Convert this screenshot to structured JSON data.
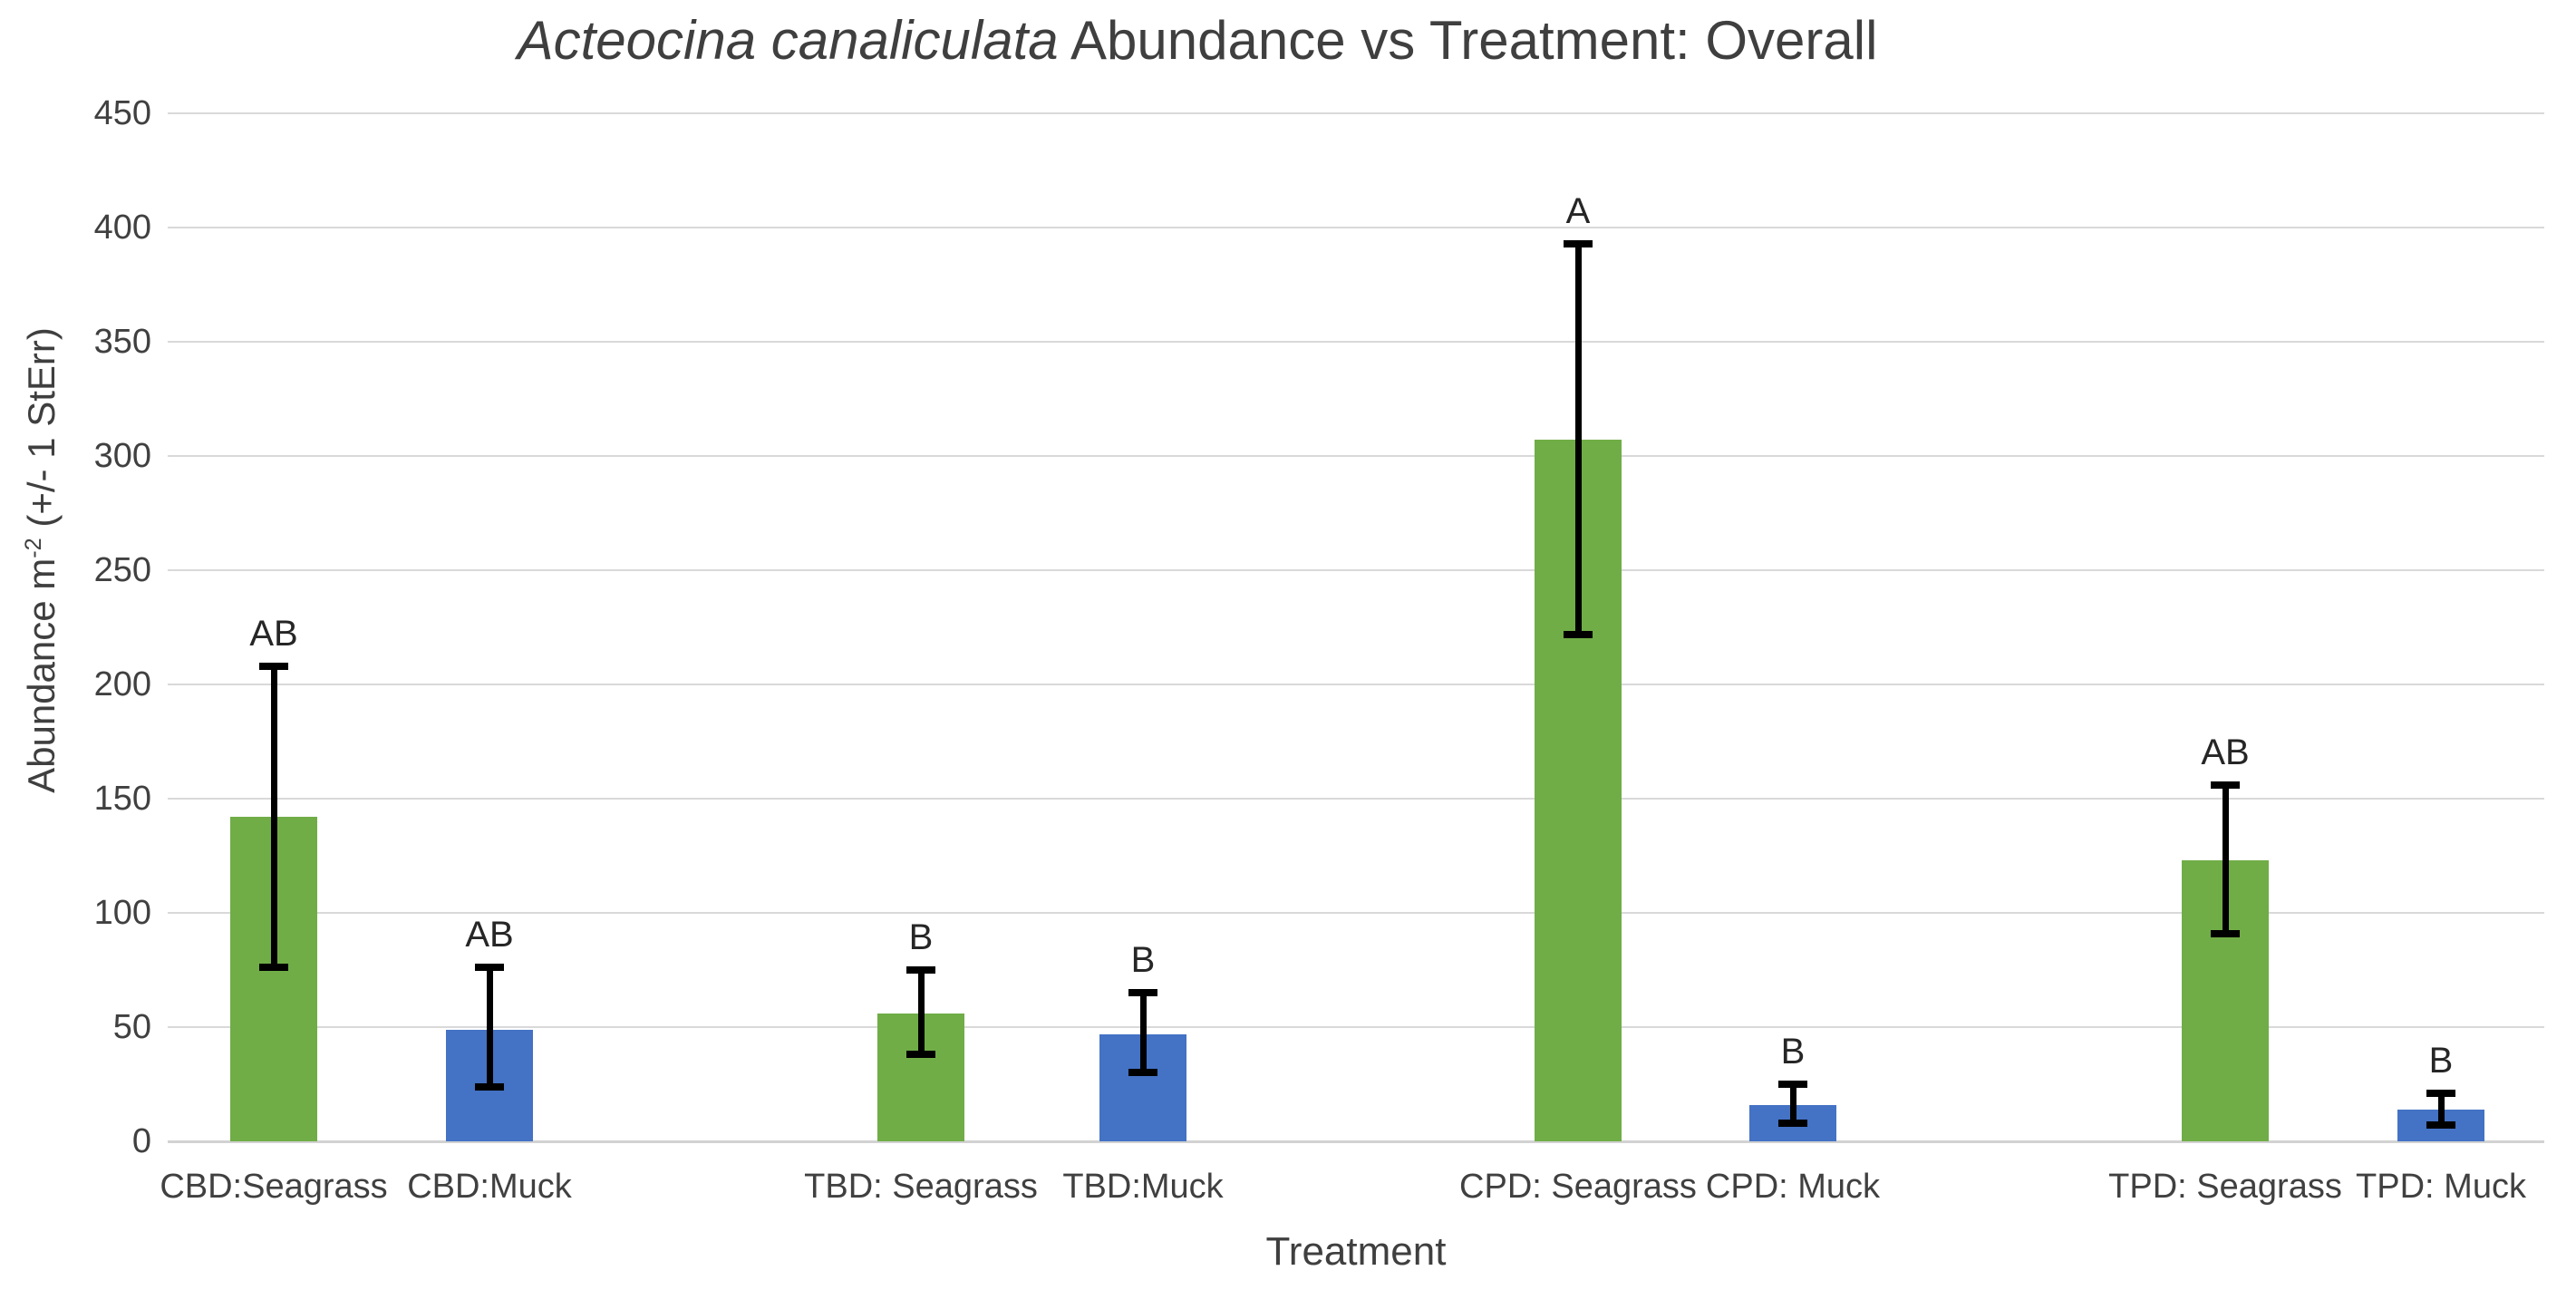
{
  "title": {
    "italic_part": "Acteocina canaliculata",
    "rest_part": " Abundance vs Treatment: Overall"
  },
  "axes": {
    "y_title_prefix": "Abundance m",
    "y_title_sup": "-2",
    "y_title_suffix": " (+/- 1 StErr)",
    "x_title": "Treatment",
    "y_ticks": [
      0,
      50,
      100,
      150,
      200,
      250,
      300,
      350,
      400,
      450
    ]
  },
  "chart_data": {
    "type": "bar",
    "title": "Acteocina canaliculata Abundance vs Treatment: Overall",
    "xlabel": "Treatment",
    "ylabel": "Abundance m-2 (+/- 1 StErr)",
    "ylim": [
      0,
      450
    ],
    "ytick_step": 50,
    "grid": true,
    "legend": "none",
    "categories": [
      "CBD:Seagrass",
      "CBD:Muck",
      "TBD: Seagrass",
      "TBD:Muck",
      "CPD: Seagrass",
      "CPD: Muck",
      "TPD: Seagrass",
      "TPD: Muck"
    ],
    "values": [
      142,
      49,
      56,
      47,
      307,
      16,
      123,
      14
    ],
    "error_low": [
      76,
      24,
      38,
      30,
      222,
      8,
      91,
      7
    ],
    "error_high": [
      208,
      76,
      75,
      65,
      393,
      25,
      156,
      21
    ],
    "sig_letters": [
      "AB",
      "AB",
      "B",
      "B",
      "A",
      "B",
      "AB",
      "B"
    ],
    "bar_colors": [
      "#70AD47",
      "#4472C4",
      "#70AD47",
      "#4472C4",
      "#70AD47",
      "#4472C4",
      "#70AD47",
      "#4472C4"
    ],
    "error_bar_color": "#000000",
    "gridline_color": "#d9d9d9"
  }
}
